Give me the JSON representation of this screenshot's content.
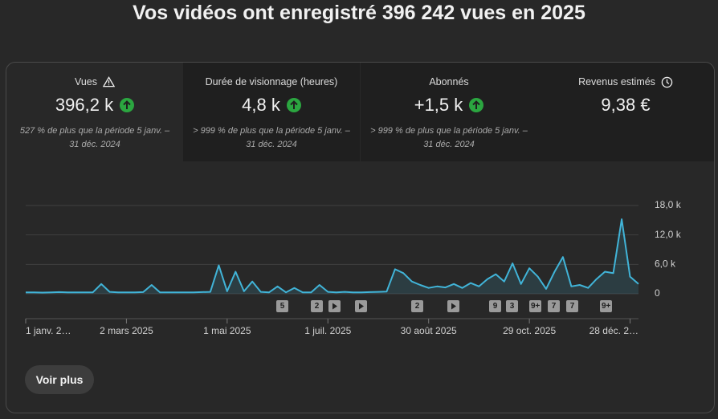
{
  "header": {
    "title": "Vos vidéos ont enregistré 396 242 vues en 2025"
  },
  "cards": [
    {
      "label": "Vues",
      "value": "396,2 k",
      "comparison": "527 % de plus que la période 5 janv. – 31 déc. 2024"
    },
    {
      "label": "Durée de visionnage (heures)",
      "value": "4,8 k",
      "comparison": "> 999 % de plus que la période 5 janv. – 31 déc. 2024"
    },
    {
      "label": "Abonnés",
      "value": "+1,5 k",
      "comparison": "> 999 % de plus que la période 5 janv. – 31 déc. 2024"
    },
    {
      "label": "Revenus estimés",
      "value": "9,38 €"
    }
  ],
  "markers": [
    "5",
    "2",
    "2",
    "9",
    "3",
    "9+",
    "7",
    "7",
    "9+"
  ],
  "button": "Voir plus",
  "chart_data": {
    "type": "line",
    "categories": [
      "1 janv. 2…",
      null,
      null,
      null,
      null,
      null,
      null,
      null,
      null,
      null,
      null,
      null,
      "2 mars 2025",
      null,
      null,
      null,
      null,
      null,
      null,
      null,
      null,
      null,
      null,
      null,
      "1 mai 2025",
      null,
      null,
      null,
      null,
      null,
      null,
      null,
      null,
      null,
      null,
      null,
      "1 juil. 2025",
      null,
      null,
      null,
      null,
      null,
      null,
      null,
      null,
      null,
      null,
      null,
      "30 août 2025",
      null,
      null,
      null,
      null,
      null,
      null,
      null,
      null,
      null,
      null,
      null,
      "29 oct. 2025",
      null,
      null,
      null,
      null,
      null,
      null,
      null,
      null,
      null,
      null,
      null,
      "28 déc. 2…",
      null
    ],
    "series": [
      {
        "name": "Vues",
        "color": "#41b4d8",
        "values": [
          300,
          300,
          250,
          300,
          350,
          300,
          300,
          300,
          300,
          2000,
          400,
          300,
          300,
          300,
          350,
          1800,
          300,
          300,
          300,
          300,
          300,
          350,
          400,
          5800,
          500,
          4500,
          500,
          2500,
          400,
          300,
          1500,
          300,
          1200,
          300,
          300,
          1800,
          400,
          300,
          400,
          300,
          300,
          350,
          400,
          450,
          5000,
          4200,
          2500,
          1800,
          1200,
          1500,
          1300,
          2000,
          1200,
          2200,
          1500,
          3000,
          4000,
          2500,
          6200,
          2000,
          5200,
          3500,
          1000,
          4500,
          7500,
          1500,
          1800,
          1200,
          3000,
          4500,
          4200,
          15200,
          3500,
          2000
        ]
      }
    ],
    "ylim": [
      0,
      18000
    ],
    "yticks": [
      0,
      {
        "value": 6000,
        "label": "6,0 k"
      },
      {
        "value": 12000,
        "label": "12,0 k"
      },
      {
        "value": 18000,
        "label": "18,0 k"
      }
    ],
    "grid": true
  }
}
